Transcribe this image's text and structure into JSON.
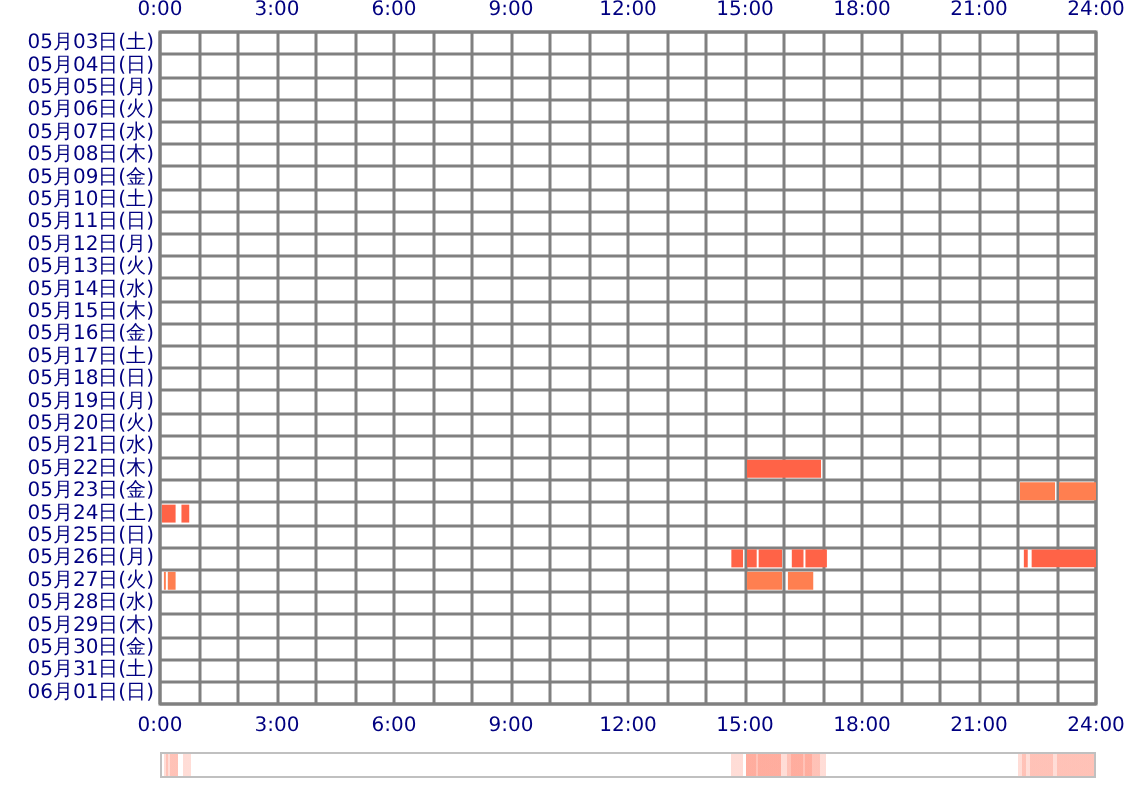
{
  "chart_data": {
    "type": "bar",
    "orientation": "horizontal",
    "grid": true,
    "categories": [
      "05月03日(土)",
      "05月04日(日)",
      "05月05日(月)",
      "05月06日(火)",
      "05月07日(水)",
      "05月08日(木)",
      "05月09日(金)",
      "05月10日(土)",
      "05月11日(日)",
      "05月12日(月)",
      "05月13日(火)",
      "05月14日(水)",
      "05月15日(木)",
      "05月16日(金)",
      "05月17日(土)",
      "05月18日(日)",
      "05月19日(月)",
      "05月20日(火)",
      "05月21日(水)",
      "05月22日(木)",
      "05月23日(金)",
      "05月24日(土)",
      "05月25日(日)",
      "05月26日(月)",
      "05月27日(火)",
      "05月28日(水)",
      "05月29日(木)",
      "05月30日(金)",
      "05月31日(土)",
      "06月01日(日)"
    ],
    "xlim": [
      0,
      24
    ],
    "xticks": [
      {
        "value": 0,
        "label": "0:00"
      },
      {
        "value": 1,
        "label": null
      },
      {
        "value": 2,
        "label": null
      },
      {
        "value": 3,
        "label": "3:00"
      },
      {
        "value": 4,
        "label": null
      },
      {
        "value": 5,
        "label": null
      },
      {
        "value": 6,
        "label": "6:00"
      },
      {
        "value": 7,
        "label": null
      },
      {
        "value": 8,
        "label": null
      },
      {
        "value": 9,
        "label": "9:00"
      },
      {
        "value": 10,
        "label": null
      },
      {
        "value": 11,
        "label": null
      },
      {
        "value": 12,
        "label": "12:00"
      },
      {
        "value": 13,
        "label": null
      },
      {
        "value": 14,
        "label": null
      },
      {
        "value": 15,
        "label": "15:00"
      },
      {
        "value": 16,
        "label": null
      },
      {
        "value": 17,
        "label": null
      },
      {
        "value": 18,
        "label": "18:00"
      },
      {
        "value": 19,
        "label": null
      },
      {
        "value": 20,
        "label": null
      },
      {
        "value": 21,
        "label": "21:00"
      },
      {
        "value": 22,
        "label": null
      },
      {
        "value": 23,
        "label": null
      },
      {
        "value": 24,
        "label": "24:00"
      }
    ],
    "x2lim": [
      0,
      24
    ],
    "x2ticks": [
      {
        "value": 0,
        "label": "0:00"
      },
      {
        "value": 1,
        "label": null
      },
      {
        "value": 2,
        "label": null
      },
      {
        "value": 3,
        "label": "3:00"
      },
      {
        "value": 4,
        "label": null
      },
      {
        "value": 5,
        "label": null
      },
      {
        "value": 6,
        "label": "6:00"
      },
      {
        "value": 7,
        "label": null
      },
      {
        "value": 8,
        "label": null
      },
      {
        "value": 9,
        "label": "9:00"
      },
      {
        "value": 10,
        "label": null
      },
      {
        "value": 11,
        "label": null
      },
      {
        "value": 12,
        "label": "12:00"
      },
      {
        "value": 13,
        "label": null
      },
      {
        "value": 14,
        "label": null
      },
      {
        "value": 15,
        "label": "15:00"
      },
      {
        "value": 16,
        "label": null
      },
      {
        "value": 17,
        "label": null
      },
      {
        "value": 18,
        "label": "18:00"
      },
      {
        "value": 19,
        "label": null
      },
      {
        "value": 20,
        "label": null
      },
      {
        "value": 21,
        "label": "21:00"
      },
      {
        "value": 22,
        "label": null
      },
      {
        "value": 23,
        "label": null
      },
      {
        "value": 24,
        "label": "24:00"
      }
    ],
    "series": [
      {
        "color": "#ff6347",
        "base": [
          null,
          null,
          null,
          null,
          null,
          null,
          null,
          null,
          null,
          null,
          null,
          null,
          null,
          null,
          null,
          null,
          null,
          null,
          null,
          15.05,
          22.05,
          0.05,
          null,
          14.65,
          0.1,
          null,
          null,
          null,
          null,
          null
        ],
        "values": [
          null,
          null,
          null,
          null,
          null,
          null,
          null,
          null,
          null,
          null,
          null,
          null,
          null,
          null,
          null,
          null,
          null,
          null,
          null,
          1.9,
          0.9,
          0.35,
          null,
          0.3,
          0.05,
          null,
          null,
          null,
          null,
          null
        ],
        "colors": [
          null,
          null,
          null,
          null,
          null,
          null,
          null,
          null,
          null,
          null,
          null,
          null,
          null,
          null,
          null,
          null,
          null,
          null,
          null,
          "#ff6347",
          "#ff7f50",
          "#ff6347",
          null,
          "#ff6347",
          "#ff7f50",
          null,
          null,
          null,
          null,
          null
        ]
      },
      {
        "color": "#ff6347",
        "base": [
          null,
          null,
          null,
          null,
          null,
          null,
          null,
          null,
          null,
          null,
          null,
          null,
          null,
          null,
          null,
          null,
          null,
          null,
          null,
          null,
          23.05,
          0.55,
          null,
          15.05,
          0.2,
          null,
          null,
          null,
          null,
          null
        ],
        "values": [
          null,
          null,
          null,
          null,
          null,
          null,
          null,
          null,
          null,
          null,
          null,
          null,
          null,
          null,
          null,
          null,
          null,
          null,
          null,
          null,
          0.95,
          0.2,
          null,
          0.25,
          0.2,
          null,
          null,
          null,
          null,
          null
        ],
        "colors": [
          null,
          null,
          null,
          null,
          null,
          null,
          null,
          null,
          null,
          null,
          null,
          null,
          null,
          null,
          null,
          null,
          null,
          null,
          null,
          null,
          "#ff7f50",
          "#ff6347",
          null,
          "#ff6347",
          "#ff7f50",
          null,
          null,
          null,
          null,
          null
        ]
      },
      {
        "color": "#ff6347",
        "base": [
          null,
          null,
          null,
          null,
          null,
          null,
          null,
          null,
          null,
          null,
          null,
          null,
          null,
          null,
          null,
          null,
          null,
          null,
          null,
          null,
          null,
          null,
          null,
          15.35,
          15.05,
          null,
          null,
          null,
          null,
          null
        ],
        "values": [
          null,
          null,
          null,
          null,
          null,
          null,
          null,
          null,
          null,
          null,
          null,
          null,
          null,
          null,
          null,
          null,
          null,
          null,
          null,
          null,
          null,
          null,
          null,
          0.6,
          0.9,
          null,
          null,
          null,
          null,
          null
        ],
        "colors": [
          null,
          null,
          null,
          null,
          null,
          null,
          null,
          null,
          null,
          null,
          null,
          null,
          null,
          null,
          null,
          null,
          null,
          null,
          null,
          null,
          null,
          null,
          null,
          "#ff6347",
          "#ff7f50",
          null,
          null,
          null,
          null,
          null
        ]
      },
      {
        "color": "#ff6347",
        "base": [
          null,
          null,
          null,
          null,
          null,
          null,
          null,
          null,
          null,
          null,
          null,
          null,
          null,
          null,
          null,
          null,
          null,
          null,
          null,
          null,
          null,
          null,
          null,
          16.2,
          16.1,
          null,
          null,
          null,
          null,
          null
        ],
        "values": [
          null,
          null,
          null,
          null,
          null,
          null,
          null,
          null,
          null,
          null,
          null,
          null,
          null,
          null,
          null,
          null,
          null,
          null,
          null,
          null,
          null,
          null,
          null,
          0.3,
          0.65,
          null,
          null,
          null,
          null,
          null
        ],
        "colors": [
          null,
          null,
          null,
          null,
          null,
          null,
          null,
          null,
          null,
          null,
          null,
          null,
          null,
          null,
          null,
          null,
          null,
          null,
          null,
          null,
          null,
          null,
          null,
          "#ff6347",
          "#ff7f50",
          null,
          null,
          null,
          null,
          null
        ]
      },
      {
        "color": "#ff6347",
        "base": [
          null,
          null,
          null,
          null,
          null,
          null,
          null,
          null,
          null,
          null,
          null,
          null,
          null,
          null,
          null,
          null,
          null,
          null,
          null,
          null,
          null,
          null,
          null,
          16.55,
          null,
          null,
          null,
          null,
          null,
          null
        ],
        "values": [
          null,
          null,
          null,
          null,
          null,
          null,
          null,
          null,
          null,
          null,
          null,
          null,
          null,
          null,
          null,
          null,
          null,
          null,
          null,
          null,
          null,
          null,
          null,
          0.55,
          null,
          null,
          null,
          null,
          null,
          null
        ]
      },
      {
        "color": "#ff6347",
        "base": [
          null,
          null,
          null,
          null,
          null,
          null,
          null,
          null,
          null,
          null,
          null,
          null,
          null,
          null,
          null,
          null,
          null,
          null,
          null,
          null,
          null,
          null,
          null,
          22.15,
          null,
          null,
          null,
          null,
          null,
          null
        ],
        "values": [
          null,
          null,
          null,
          null,
          null,
          null,
          null,
          null,
          null,
          null,
          null,
          null,
          null,
          null,
          null,
          null,
          null,
          null,
          null,
          null,
          null,
          null,
          null,
          0.1,
          null,
          null,
          null,
          null,
          null,
          null
        ]
      },
      {
        "color": "#ff6347",
        "base": [
          null,
          null,
          null,
          null,
          null,
          null,
          null,
          null,
          null,
          null,
          null,
          null,
          null,
          null,
          null,
          null,
          null,
          null,
          null,
          null,
          null,
          null,
          null,
          22.35,
          null,
          null,
          null,
          null,
          null,
          null
        ],
        "values": [
          null,
          null,
          null,
          null,
          null,
          null,
          null,
          null,
          null,
          null,
          null,
          null,
          null,
          null,
          null,
          null,
          null,
          null,
          null,
          null,
          null,
          null,
          null,
          1.65,
          null,
          null,
          null,
          null,
          null,
          null
        ]
      }
    ]
  }
}
